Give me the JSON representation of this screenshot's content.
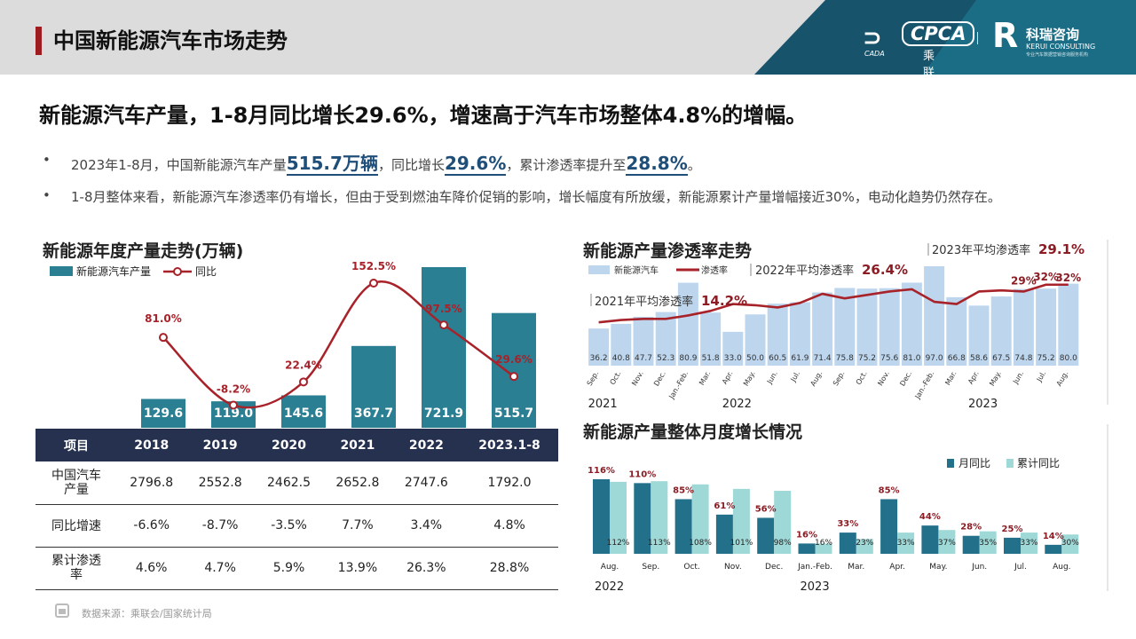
{
  "header": {
    "title": "中国新能源汽车市场走势",
    "logo1": {
      "mark": "CADA",
      "name": "CPCA",
      "cn": "乘联会"
    },
    "logo2": {
      "mark": "R",
      "cn": "科瑞咨询",
      "en": "KERUI CONSULTING",
      "en2": "专业汽车数据营销咨询服务机构"
    }
  },
  "headline": "新能源汽车产量，1-8月同比增长29.6%，增速高于汽车市场整体4.8%的增幅。",
  "bullets": {
    "b1": {
      "pre": "2023年1-8月，中国新能源汽车产量",
      "v1": "515.7万辆",
      "mid": "，同比增长",
      "v2": "29.6%",
      "mid2": "，累计渗透率提升至",
      "v3": "28.8%",
      "end": "。"
    },
    "b2": "1-8月整体来看，新能源汽车渗透率仍有增长，但由于受到燃油车降价促销的影响，增长幅度有所放缓，新能源累计产量增幅接近30%，电动化趋势仍然存在。",
    "dot": "•"
  },
  "annual": {
    "title": "新能源年度产量走势(万辆)",
    "legend_bar": "新能源汽车产量",
    "legend_line": "同比"
  },
  "table": {
    "headers": [
      "项目",
      "2018",
      "2019",
      "2020",
      "2021",
      "2022",
      "2023.1-8"
    ],
    "rows": [
      {
        "label": "中国汽车产量",
        "values": [
          "2796.8",
          "2552.8",
          "2462.5",
          "2652.8",
          "2747.6",
          "1792.0"
        ]
      },
      {
        "label": "同比增速",
        "values": [
          "-6.6%",
          "-8.7%",
          "-3.5%",
          "7.7%",
          "3.4%",
          "4.8%"
        ]
      },
      {
        "label": "累计渗透率",
        "values": [
          "4.6%",
          "4.7%",
          "5.9%",
          "13.9%",
          "26.3%",
          "28.8%"
        ]
      }
    ]
  },
  "penetration": {
    "title": "新能源产量渗透率走势",
    "legend_bar": "新能源汽车",
    "legend_line": "渗透率",
    "ann_2021": "2021年平均渗透率",
    "ann_2021_v": "14.2%",
    "ann_2022": "2022年平均渗透率",
    "ann_2022_v": "26.4%",
    "ann_2023": "2023年平均渗透率",
    "ann_2023_v": "29.1%",
    "year_labels": [
      {
        "text": "2021",
        "idx": 0
      },
      {
        "text": "2022",
        "idx": 6
      },
      {
        "text": "2023",
        "idx": 17
      }
    ]
  },
  "monthly": {
    "title": "新能源产量整体月度增长情况",
    "legend_a": "月同比",
    "legend_b": "累计同比",
    "year_labels": [
      {
        "text": "2022",
        "idx": 0
      },
      {
        "text": "2023",
        "idx": 5
      }
    ]
  },
  "source": "数据来源：乘联会/国家统计局",
  "colors": {
    "bar_annual": "#2a7f92",
    "line": "#a8222a",
    "bar_pen": "#bdd6ee",
    "bar_m1": "#23708a",
    "bar_m2": "#9ed8d7",
    "table_head": "#26304f"
  },
  "chart_data": [
    {
      "type": "bar",
      "categories": [
        "2018",
        "2019",
        "2020",
        "2021",
        "2022",
        "2023.1-8"
      ],
      "series": [
        {
          "name": "新能源汽车产量",
          "values": [
            129.6,
            119.0,
            145.6,
            367.7,
            721.9,
            515.7
          ],
          "labels": [
            "129.6",
            "119.0",
            "145.6",
            "367.7",
            "721.9",
            "515.7"
          ]
        },
        {
          "name": "同比",
          "type": "line",
          "values": [
            81.0,
            -8.2,
            22.4,
            152.5,
            97.5,
            29.6
          ],
          "labels": [
            "81.0%",
            "-8.2%",
            "22.4%",
            "152.5%",
            "97.5%",
            "29.6%"
          ]
        }
      ],
      "title": "新能源年度产量走势(万辆)"
    },
    {
      "type": "bar",
      "categories": [
        "Sep.",
        "Oct.",
        "Nov.",
        "Dec.",
        "Jan.-Feb.",
        "Mar.",
        "Apr.",
        "May.",
        "Jun.",
        "Jul.",
        "Aug.",
        "Sep.",
        "Oct.",
        "Nov.",
        "Dec.",
        "Jan.-Feb.",
        "Mar.",
        "Apr.",
        "May.",
        "Jun.",
        "Jul.",
        "Aug."
      ],
      "series": [
        {
          "name": "新能源汽车",
          "values": [
            36.2,
            40.8,
            47.7,
            52.3,
            80.9,
            51.8,
            33.0,
            50.0,
            60.5,
            61.9,
            71.4,
            75.8,
            75.2,
            75.6,
            81.0,
            97.0,
            66.8,
            58.6,
            67.5,
            74.8,
            75.2,
            80.0
          ],
          "labels": [
            "36.2",
            "40.8",
            "47.7",
            "52.3",
            "80.9",
            "51.8",
            "33.0",
            "50.0",
            "60.5",
            "61.9",
            "71.4",
            "75.8",
            "75.2",
            "75.6",
            "81.0",
            "97.0",
            "66.8",
            "58.6",
            "67.5",
            "74.8",
            "75.2",
            "80.0"
          ]
        },
        {
          "name": "渗透率",
          "type": "line",
          "values": [
            15.5,
            16.5,
            17.0,
            17.0,
            18.5,
            20.5,
            23.5,
            23.0,
            22.0,
            24.0,
            28.0,
            26.0,
            27.5,
            29.0,
            30.0,
            24.5,
            23.5,
            29.0,
            29.5,
            29.0,
            32.0,
            32.0
          ]
        }
      ],
      "title": "新能源产量渗透率走势"
    },
    {
      "type": "bar",
      "categories": [
        "Aug.",
        "Sep.",
        "Oct.",
        "Nov.",
        "Dec.",
        "Jan.-Feb.",
        "Mar.",
        "Apr.",
        "May.",
        "Jun.",
        "Jul.",
        "Aug."
      ],
      "series": [
        {
          "name": "月同比",
          "values": [
            116,
            110,
            85,
            61,
            56,
            16,
            33,
            85,
            44,
            28,
            25,
            14
          ],
          "labels": [
            "116%",
            "110%",
            "85%",
            "61%",
            "56%",
            "16%",
            "33%",
            "85%",
            "44%",
            "28%",
            "25%",
            "14%"
          ]
        },
        {
          "name": "累计同比",
          "values": [
            112,
            113,
            108,
            101,
            98,
            16,
            23,
            33,
            37,
            35,
            33,
            30
          ],
          "labels": [
            "112%",
            "113%",
            "108%",
            "101%",
            "98%",
            "16%",
            "23%",
            "33%",
            "37%",
            "35%",
            "33%",
            "30%"
          ]
        }
      ],
      "title": "新能源产量整体月度增长情况"
    }
  ]
}
